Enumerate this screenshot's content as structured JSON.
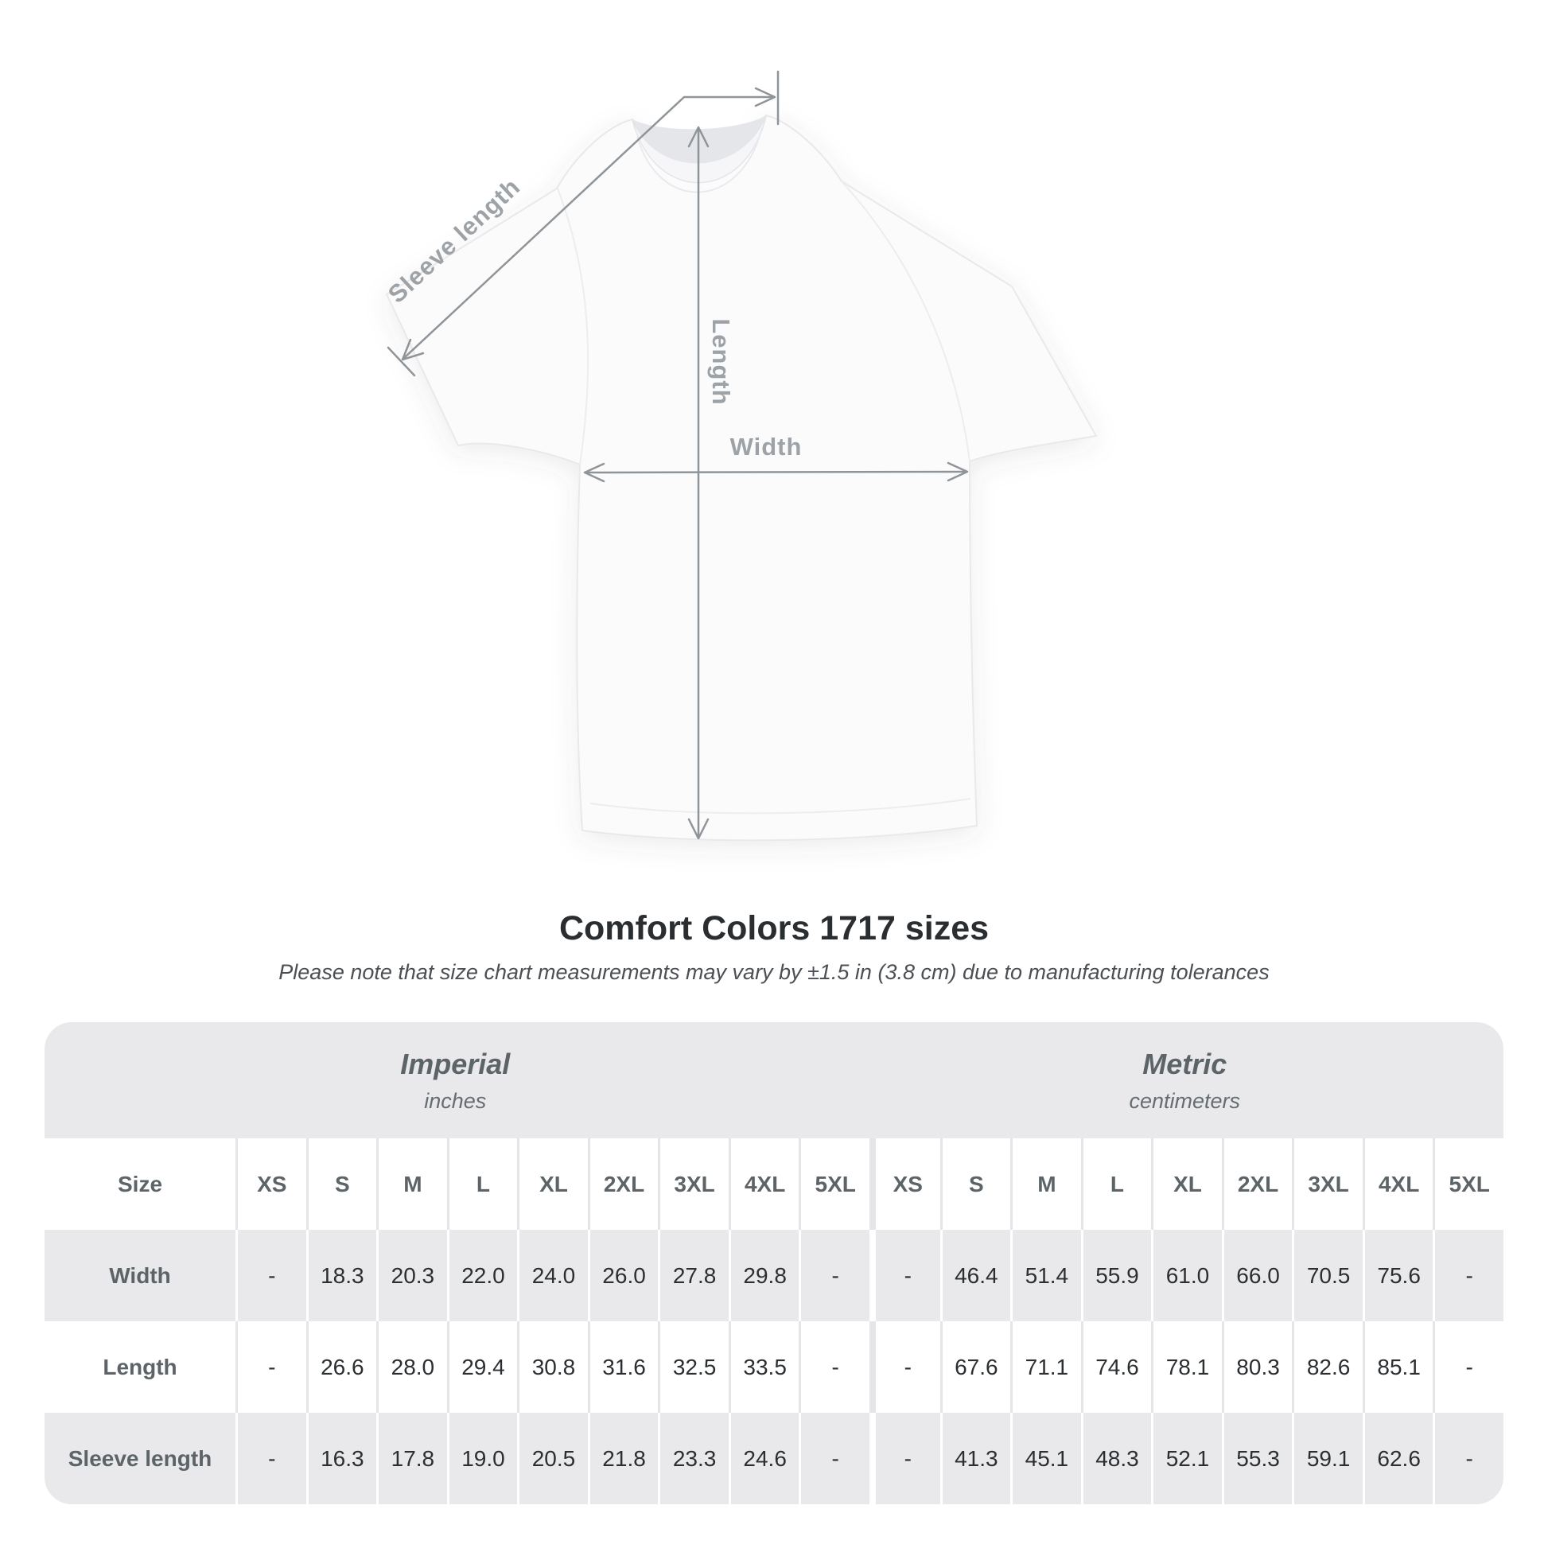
{
  "diagram": {
    "labels": {
      "sleeve_length": "Sleeve length",
      "length": "Length",
      "width": "Width"
    }
  },
  "chart_data": {
    "type": "table",
    "title": "Comfort Colors 1717 sizes",
    "subtitle": "Please note that size chart measurements may vary by ±1.5 in (3.8 cm) due to manufacturing tolerances",
    "corner_header": "Size",
    "sizes": [
      "XS",
      "S",
      "M",
      "L",
      "XL",
      "2XL",
      "3XL",
      "4XL",
      "5XL"
    ],
    "unit_groups": [
      {
        "label": "Imperial",
        "sublabel": "inches"
      },
      {
        "label": "Metric",
        "sublabel": "centimeters"
      }
    ],
    "rows": [
      {
        "label": "Width",
        "imperial": [
          "-",
          "18.3",
          "20.3",
          "22.0",
          "24.0",
          "26.0",
          "27.8",
          "29.8",
          "-"
        ],
        "metric": [
          "-",
          "46.4",
          "51.4",
          "55.9",
          "61.0",
          "66.0",
          "70.5",
          "75.6",
          "-"
        ]
      },
      {
        "label": "Length",
        "imperial": [
          "-",
          "26.6",
          "28.0",
          "29.4",
          "30.8",
          "31.6",
          "32.5",
          "33.5",
          "-"
        ],
        "metric": [
          "-",
          "67.6",
          "71.1",
          "74.6",
          "78.1",
          "80.3",
          "82.6",
          "85.1",
          "-"
        ]
      },
      {
        "label": "Sleeve length",
        "imperial": [
          "-",
          "16.3",
          "17.8",
          "19.0",
          "20.5",
          "21.8",
          "23.3",
          "24.6",
          "-"
        ],
        "metric": [
          "-",
          "41.3",
          "45.1",
          "48.3",
          "52.1",
          "55.3",
          "59.1",
          "62.6",
          "-"
        ]
      }
    ]
  },
  "colors": {
    "row_shade": "#e9e9eb",
    "value_text": "#2c2f31",
    "header_text": "#5d6468",
    "measure_line": "#8f9498",
    "measure_label": "#9da2a6"
  }
}
